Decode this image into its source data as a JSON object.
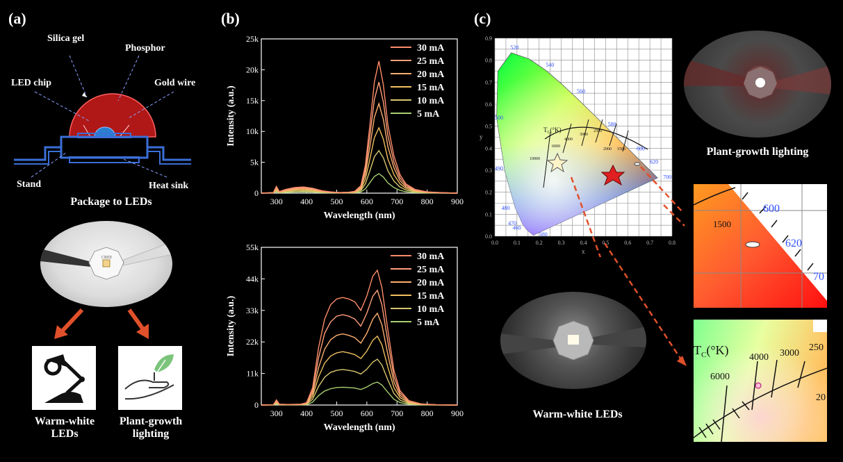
{
  "panel_a": {
    "label": "(a)",
    "parts": {
      "silica_gel": "Silica gel",
      "phosphor": "Phosphor",
      "led_chip": "LED chip",
      "gold_wire": "Gold wire",
      "stand": "Stand",
      "heat_sink": "Heat sink"
    },
    "package_caption": "Package to LEDs",
    "chip_text": "CREE",
    "warm_white_caption_line1": "Warm-white",
    "warm_white_caption_line2": "LEDs",
    "plant_caption_line1": "Plant-growth",
    "plant_caption_line2": "lighting",
    "icons": [
      "desk-lamp-icon",
      "hand-leaf-icon"
    ]
  },
  "panel_b": {
    "label": "(b)"
  },
  "panel_c": {
    "label": "(c)",
    "plant_caption": "Plant-growth lighting",
    "warm_caption": "Warm-white LEDs",
    "cie": {
      "x_ticks": [
        "0.0",
        "0.1",
        "0.2",
        "0.3",
        "0.4",
        "0.5",
        "0.6",
        "0.7",
        "0.8"
      ],
      "y_ticks": [
        "0.0",
        "0.1",
        "0.2",
        "0.3",
        "0.4",
        "0.5",
        "0.6",
        "0.7",
        "0.8",
        "0.9"
      ],
      "xlabel": "x",
      "ylabel": "y",
      "wavelengths": [
        "520",
        "540",
        "560",
        "580",
        "600",
        "620",
        "700",
        "500",
        "490",
        "480",
        "470",
        "460",
        "380"
      ],
      "tc_label": "T",
      "tc_sub": "C",
      "tc_unit": "(°K)",
      "cct_labels": [
        "10000",
        "6000",
        "4000",
        "3000",
        "2500",
        "2000",
        "1500"
      ]
    },
    "zoom1": {
      "labels": [
        "1500",
        "600",
        "620",
        "70"
      ]
    },
    "zoom2": {
      "tc_label": "T",
      "tc_sub": "C",
      "tc_unit": "(°K)",
      "labels": [
        "6000",
        "4000",
        "3000",
        "250",
        "20"
      ]
    }
  },
  "chart_data": [
    {
      "type": "line",
      "xlabel": "Wavelength (nm)",
      "ylabel": "Intensity (a.u.)",
      "xlim": [
        250,
        900
      ],
      "ylim": [
        0,
        25000
      ],
      "x_ticks": [
        "300",
        "400",
        "500",
        "600",
        "700",
        "800",
        "900"
      ],
      "y_ticks": [
        "0",
        "5k",
        "10k",
        "15k",
        "20k",
        "25k"
      ],
      "legend": "top-right",
      "x": [
        250,
        290,
        300,
        310,
        330,
        360,
        390,
        420,
        450,
        480,
        510,
        540,
        560,
        580,
        595,
        610,
        625,
        640,
        655,
        670,
        690,
        710,
        730,
        760,
        800,
        850,
        900
      ],
      "series": [
        {
          "name": "30 mA",
          "color": "#ff8c69",
          "values": [
            0,
            100,
            1100,
            250,
            600,
            900,
            1000,
            800,
            400,
            200,
            100,
            150,
            300,
            1200,
            4500,
            11000,
            18000,
            21400,
            17500,
            11000,
            6000,
            3000,
            1500,
            600,
            200,
            80,
            0
          ]
        },
        {
          "name": "25 mA",
          "color": "#ffa07a",
          "values": [
            0,
            90,
            950,
            220,
            500,
            780,
            850,
            680,
            340,
            170,
            90,
            130,
            260,
            1000,
            3800,
            9300,
            15200,
            18000,
            14700,
            9300,
            5000,
            2500,
            1250,
            500,
            170,
            70,
            0
          ]
        },
        {
          "name": "20 mA",
          "color": "#ffb070",
          "values": [
            0,
            70,
            780,
            180,
            420,
            640,
            700,
            560,
            280,
            140,
            70,
            100,
            210,
            820,
            3100,
            7500,
            12300,
            14500,
            11900,
            7500,
            4100,
            2000,
            1000,
            420,
            140,
            55,
            0
          ]
        },
        {
          "name": "15 mA",
          "color": "#f0c060",
          "values": [
            0,
            50,
            600,
            140,
            320,
            490,
            530,
            430,
            210,
            110,
            55,
            80,
            160,
            600,
            2300,
            5500,
            9000,
            10600,
            8700,
            5500,
            3000,
            1500,
            750,
            300,
            100,
            40,
            0
          ]
        },
        {
          "name": "10 mA",
          "color": "#d8c870",
          "values": [
            0,
            35,
            420,
            100,
            220,
            330,
            360,
            290,
            150,
            75,
            40,
            55,
            110,
            400,
            1500,
            3600,
            5900,
            6900,
            5700,
            3600,
            1950,
            980,
            490,
            200,
            70,
            25,
            0
          ]
        },
        {
          "name": "5 mA",
          "color": "#a8d070",
          "values": [
            0,
            20,
            250,
            60,
            120,
            180,
            200,
            160,
            80,
            40,
            20,
            30,
            60,
            190,
            700,
            1700,
            2700,
            3150,
            2600,
            1650,
            900,
            450,
            230,
            90,
            30,
            12,
            0
          ]
        }
      ]
    },
    {
      "type": "line",
      "xlabel": "Wavelength (nm)",
      "ylabel": "Intensity (a.u.)",
      "xlim": [
        250,
        900
      ],
      "ylim": [
        0,
        55000
      ],
      "x_ticks": [
        "300",
        "400",
        "500",
        "600",
        "700",
        "800",
        "900"
      ],
      "y_ticks": [
        "0",
        "11k",
        "22k",
        "33k",
        "44k",
        "55k"
      ],
      "legend": "top-right",
      "x": [
        250,
        290,
        300,
        310,
        340,
        380,
        400,
        420,
        440,
        460,
        480,
        500,
        520,
        540,
        560,
        580,
        600,
        620,
        635,
        650,
        670,
        690,
        710,
        740,
        780,
        830,
        900
      ],
      "series": [
        {
          "name": "30 mA",
          "color": "#ff8c69",
          "values": [
            0,
            100,
            1800,
            300,
            200,
            300,
            800,
            6000,
            20000,
            30000,
            35000,
            37000,
            37500,
            37000,
            36000,
            33000,
            38000,
            45000,
            47000,
            41000,
            26000,
            12000,
            5000,
            1500,
            400,
            100,
            0
          ]
        },
        {
          "name": "25 mA",
          "color": "#ffa07a",
          "values": [
            0,
            90,
            1500,
            260,
            170,
            250,
            700,
            5000,
            16500,
            25000,
            29000,
            31000,
            31500,
            31000,
            30000,
            27500,
            32000,
            38000,
            40000,
            35000,
            22000,
            10000,
            4200,
            1300,
            350,
            90,
            0
          ]
        },
        {
          "name": "20 mA",
          "color": "#ffb070",
          "values": [
            0,
            70,
            1200,
            210,
            140,
            200,
            560,
            4000,
            13000,
            19500,
            22800,
            24300,
            24800,
            24300,
            23500,
            21600,
            25000,
            30000,
            32000,
            28000,
            17500,
            8000,
            3400,
            1000,
            280,
            70,
            0
          ]
        },
        {
          "name": "15 mA",
          "color": "#f0c060",
          "values": [
            0,
            55,
            900,
            160,
            110,
            150,
            420,
            3000,
            9800,
            14600,
            17100,
            18200,
            18600,
            18200,
            17600,
            16200,
            18800,
            22600,
            24000,
            21000,
            13100,
            6000,
            2600,
            780,
            210,
            55,
            0
          ]
        },
        {
          "name": "10 mA",
          "color": "#d8c870",
          "values": [
            0,
            40,
            600,
            110,
            75,
            100,
            280,
            2000,
            6500,
            9700,
            11400,
            12100,
            12400,
            12100,
            11700,
            10800,
            12500,
            15000,
            16000,
            14000,
            8700,
            4000,
            1700,
            520,
            140,
            35,
            0
          ]
        },
        {
          "name": "5 mA",
          "color": "#a8d070",
          "values": [
            0,
            20,
            300,
            60,
            40,
            50,
            140,
            1000,
            3300,
            4900,
            5700,
            6100,
            6200,
            6100,
            5900,
            5400,
            6300,
            7500,
            8000,
            7000,
            4400,
            2000,
            860,
            260,
            70,
            18,
            0
          ]
        }
      ]
    }
  ]
}
